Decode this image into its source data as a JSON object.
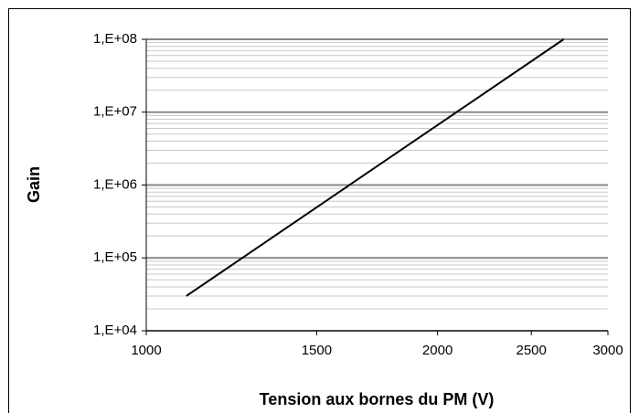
{
  "chart_data": {
    "type": "line",
    "x_label": "Tension aux bornes du PM (V)",
    "y_label": "Gain",
    "series": [
      {
        "name": "Gain",
        "color": "#000000",
        "x": [
          1100,
          2700
        ],
        "values": [
          30000,
          100000000
        ]
      }
    ],
    "xlim": [
      1000,
      3000
    ],
    "xticks": [
      1000,
      1500,
      2000,
      2500,
      3000
    ],
    "xscale": "log",
    "ylim": [
      10000,
      100000000
    ],
    "yticks": [
      {
        "value": 10000,
        "label": "1,E+04"
      },
      {
        "value": 100000,
        "label": "1,E+05"
      },
      {
        "value": 1000000,
        "label": "1,E+06"
      },
      {
        "value": 10000000,
        "label": "1,E+07"
      },
      {
        "value": 100000000,
        "label": "1,E+08"
      }
    ],
    "yscale": "log",
    "grid": true,
    "minor_grid": true
  }
}
